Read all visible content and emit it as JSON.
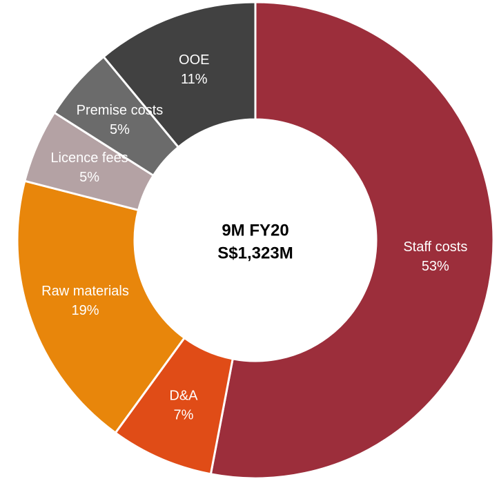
{
  "chart_data": {
    "type": "donut",
    "center_title": "9M FY20",
    "center_subtitle": "S$1,323M",
    "categories": [
      "Staff costs",
      "D&A",
      "Raw materials",
      "Licence fees",
      "Premise costs",
      "OOE"
    ],
    "values": [
      53,
      7,
      19,
      5,
      5,
      11
    ],
    "value_labels": [
      "53%",
      "7%",
      "19%",
      "5%",
      "5%",
      "11%"
    ],
    "colors": [
      "#9c2e3b",
      "#e04c17",
      "#e8860b",
      "#b4a2a4",
      "#6b6b6b",
      "#414141"
    ]
  }
}
